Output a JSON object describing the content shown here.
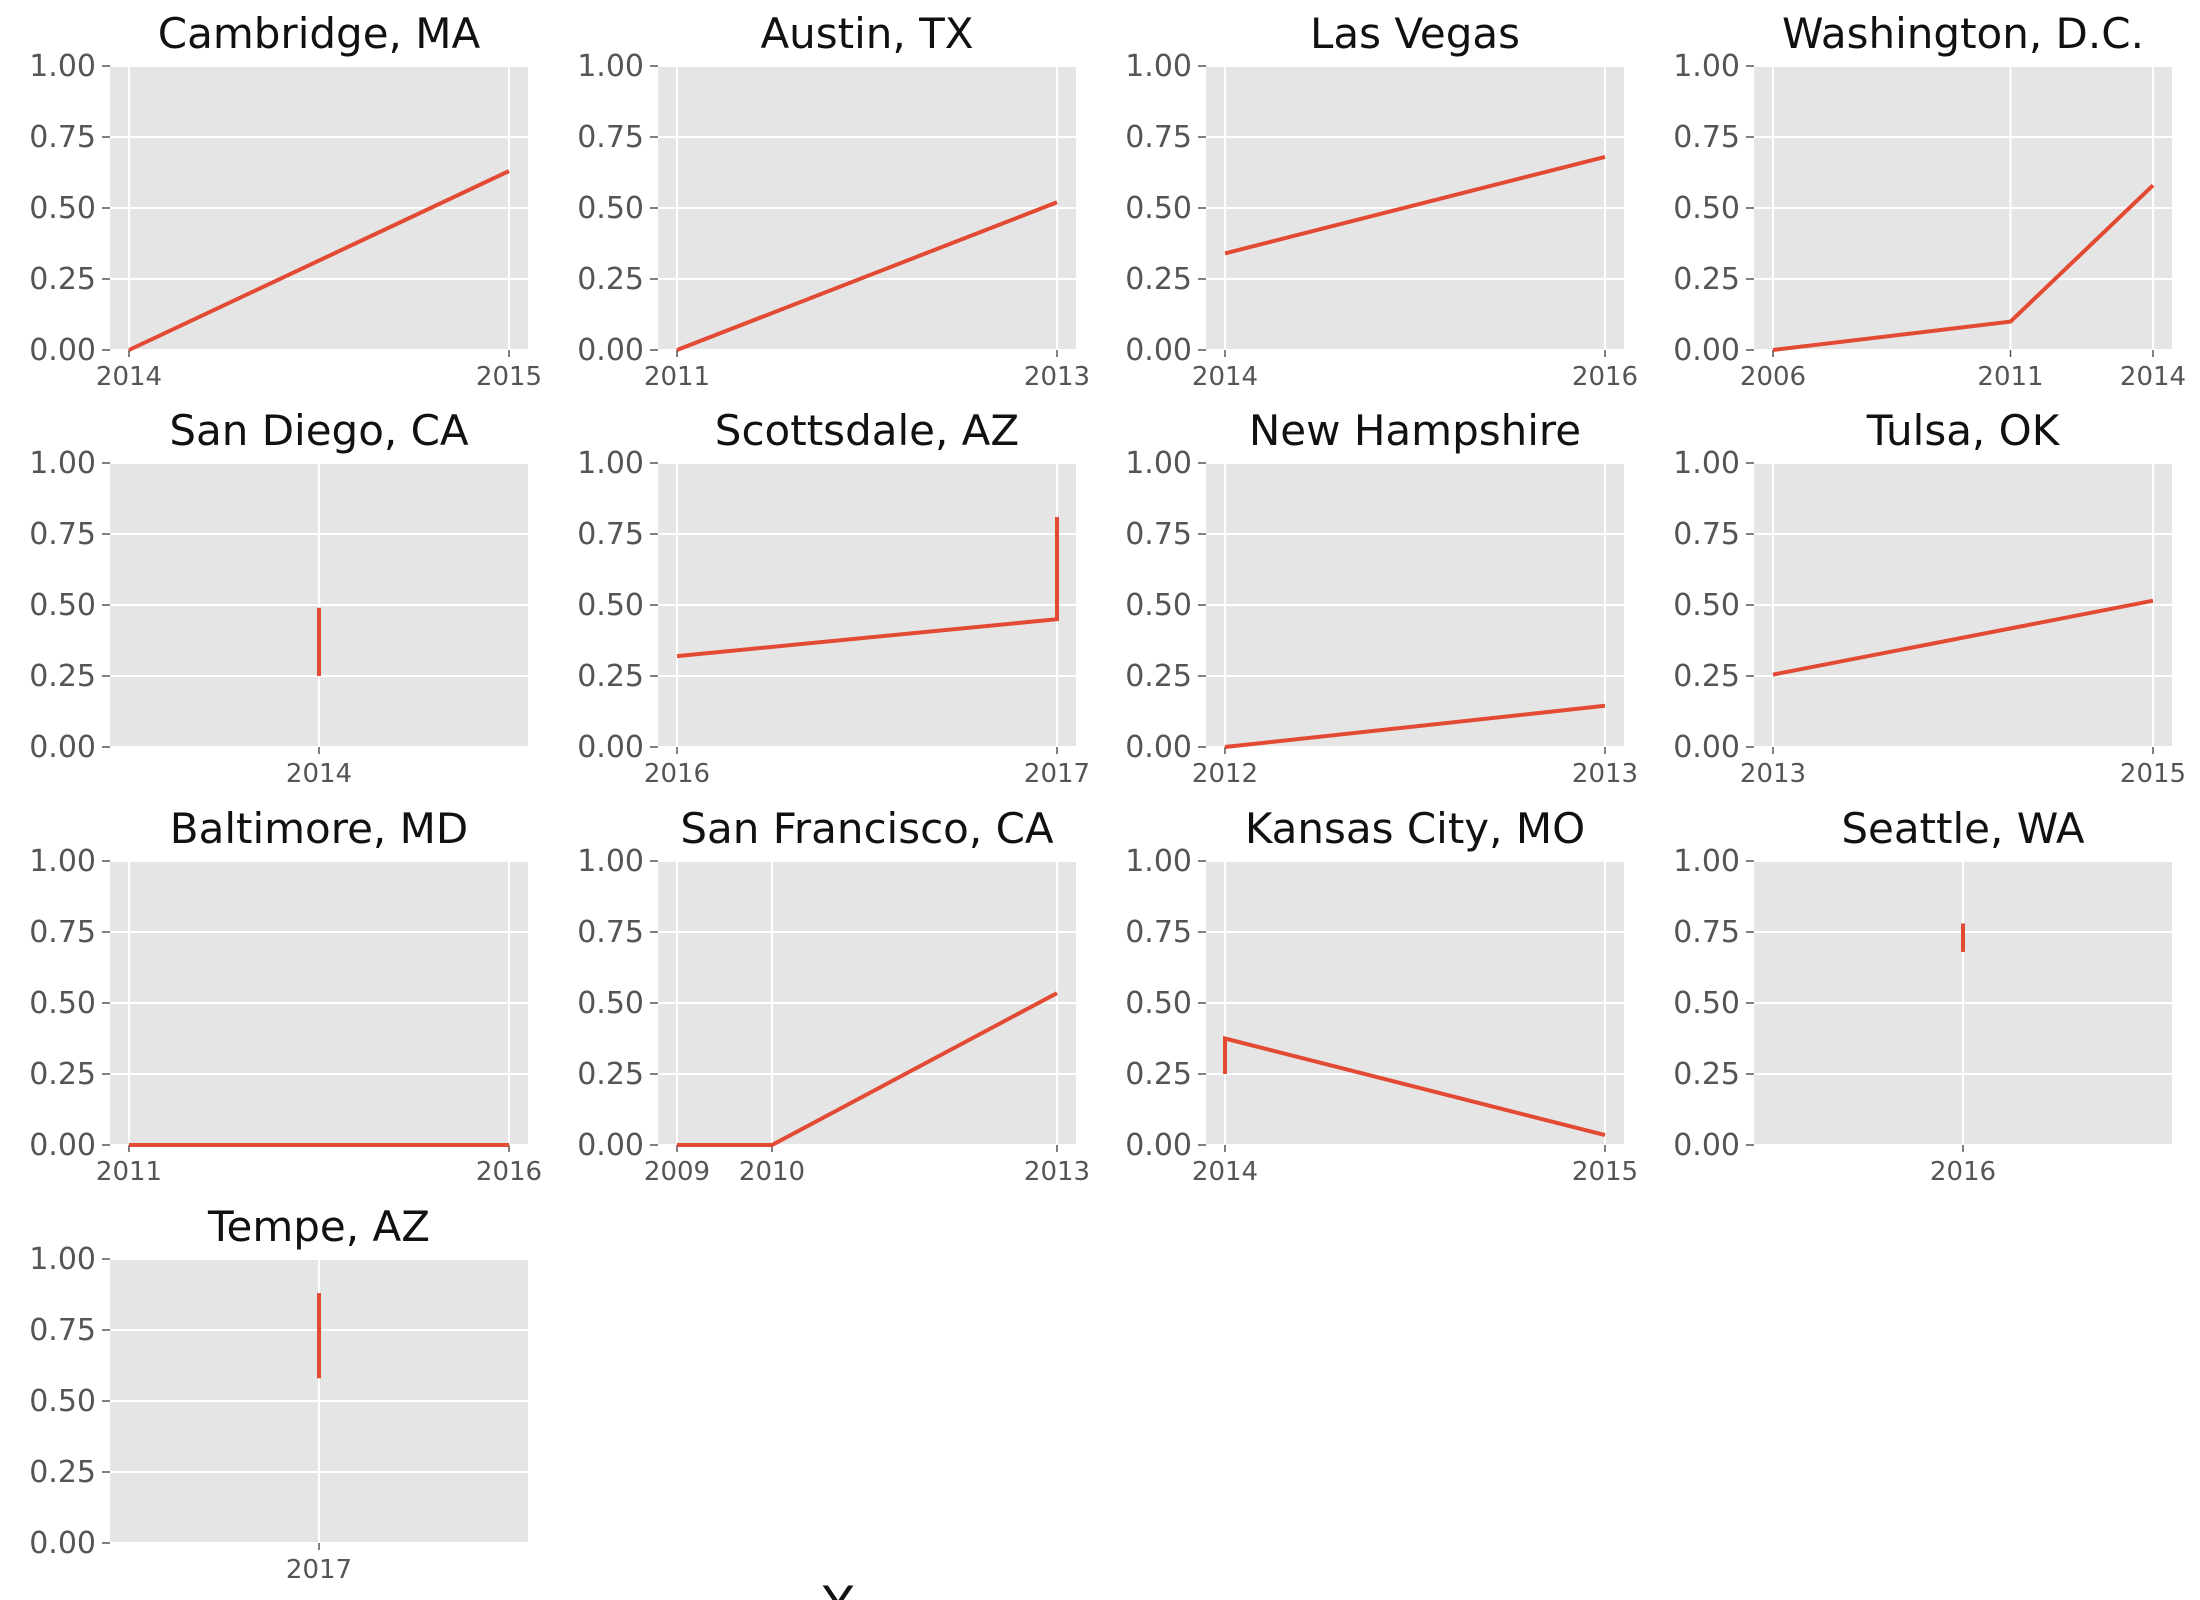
{
  "style": {
    "panel_background": "#e5e5e5",
    "grid_color": "#ffffff",
    "line_color": "#e24a33",
    "tick_label_color": "#555555",
    "title_color": "#111111"
  },
  "figure": {
    "xlabel": "Y"
  },
  "chart_data": [
    {
      "type": "line",
      "title": "Cambridge, MA",
      "ylim": [
        0,
        1
      ],
      "grid": true,
      "yticks": [
        "0.00",
        "0.25",
        "0.50",
        "0.75",
        "1.00"
      ],
      "xlim": [
        2013.95,
        2015.05
      ],
      "xticks": [
        {
          "value": 2014,
          "label": "2014"
        },
        {
          "value": 2015,
          "label": "2015"
        }
      ],
      "x": [
        2014,
        2015
      ],
      "y": [
        0.0,
        0.63
      ]
    },
    {
      "type": "line",
      "title": "Austin, TX",
      "ylim": [
        0,
        1
      ],
      "grid": true,
      "yticks": [
        "0.00",
        "0.25",
        "0.50",
        "0.75",
        "1.00"
      ],
      "xlim": [
        2010.9,
        2013.1
      ],
      "xticks": [
        {
          "value": 2011,
          "label": "2011"
        },
        {
          "value": 2013,
          "label": "2013"
        }
      ],
      "x": [
        2011,
        2013
      ],
      "y": [
        0.0,
        0.52
      ]
    },
    {
      "type": "line",
      "title": "Las Vegas",
      "ylim": [
        0,
        1
      ],
      "grid": true,
      "yticks": [
        "0.00",
        "0.25",
        "0.50",
        "0.75",
        "1.00"
      ],
      "xlim": [
        2013.9,
        2016.1
      ],
      "xticks": [
        {
          "value": 2014,
          "label": "2014"
        },
        {
          "value": 2016,
          "label": "2016"
        }
      ],
      "x": [
        2014,
        2016
      ],
      "y": [
        0.34,
        0.68
      ]
    },
    {
      "type": "line",
      "title": "Washington, D.C.",
      "ylim": [
        0,
        1
      ],
      "grid": true,
      "yticks": [
        "0.00",
        "0.25",
        "0.50",
        "0.75",
        "1.00"
      ],
      "xlim": [
        2005.6,
        2014.4
      ],
      "xticks": [
        {
          "value": 2006,
          "label": "2006"
        },
        {
          "value": 2011,
          "label": "2011"
        },
        {
          "value": 2014,
          "label": "2014"
        }
      ],
      "x": [
        2006,
        2011,
        2014
      ],
      "y": [
        0.0,
        0.1,
        0.58
      ]
    },
    {
      "type": "line",
      "title": "San Diego, CA",
      "ylim": [
        0,
        1
      ],
      "grid": true,
      "yticks": [
        "0.00",
        "0.25",
        "0.50",
        "0.75",
        "1.00"
      ],
      "xlim": [
        2013.945,
        2014.055
      ],
      "xticks": [
        {
          "value": 2014,
          "label": "2014"
        }
      ],
      "x": [
        2014,
        2014
      ],
      "y": [
        0.25,
        0.49
      ]
    },
    {
      "type": "line",
      "title": "Scottsdale, AZ",
      "ylim": [
        0,
        1
      ],
      "grid": true,
      "yticks": [
        "0.00",
        "0.25",
        "0.50",
        "0.75",
        "1.00"
      ],
      "xlim": [
        2015.95,
        2017.05
      ],
      "xticks": [
        {
          "value": 2016,
          "label": "2016"
        },
        {
          "value": 2017,
          "label": "2017"
        }
      ],
      "x": [
        2016,
        2017,
        2017
      ],
      "y": [
        0.32,
        0.45,
        0.81
      ]
    },
    {
      "type": "line",
      "title": "New Hampshire",
      "ylim": [
        0,
        1
      ],
      "grid": true,
      "yticks": [
        "0.00",
        "0.25",
        "0.50",
        "0.75",
        "1.00"
      ],
      "xlim": [
        2011.95,
        2013.05
      ],
      "xticks": [
        {
          "value": 2012,
          "label": "2012"
        },
        {
          "value": 2013,
          "label": "2013"
        }
      ],
      "x": [
        2012,
        2013
      ],
      "y": [
        0.0,
        0.145
      ]
    },
    {
      "type": "line",
      "title": "Tulsa, OK",
      "ylim": [
        0,
        1
      ],
      "grid": true,
      "yticks": [
        "0.00",
        "0.25",
        "0.50",
        "0.75",
        "1.00"
      ],
      "xlim": [
        2012.9,
        2015.1
      ],
      "xticks": [
        {
          "value": 2013,
          "label": "2013"
        },
        {
          "value": 2015,
          "label": "2015"
        }
      ],
      "x": [
        2013,
        2015
      ],
      "y": [
        0.255,
        0.515
      ]
    },
    {
      "type": "line",
      "title": "Baltimore, MD",
      "ylim": [
        0,
        1
      ],
      "grid": true,
      "yticks": [
        "0.00",
        "0.25",
        "0.50",
        "0.75",
        "1.00"
      ],
      "xlim": [
        2010.75,
        2016.25
      ],
      "xticks": [
        {
          "value": 2011,
          "label": "2011"
        },
        {
          "value": 2016,
          "label": "2016"
        }
      ],
      "x": [
        2011,
        2016
      ],
      "y": [
        0.0,
        0.0
      ]
    },
    {
      "type": "line",
      "title": "San Francisco, CA",
      "ylim": [
        0,
        1
      ],
      "grid": true,
      "yticks": [
        "0.00",
        "0.25",
        "0.50",
        "0.75",
        "1.00"
      ],
      "xlim": [
        2008.8,
        2013.2
      ],
      "xticks": [
        {
          "value": 2009,
          "label": "2009"
        },
        {
          "value": 2010,
          "label": "2010"
        },
        {
          "value": 2013,
          "label": "2013"
        }
      ],
      "x": [
        2009,
        2010,
        2013
      ],
      "y": [
        0.0,
        0.0,
        0.535
      ]
    },
    {
      "type": "line",
      "title": "Kansas City, MO",
      "ylim": [
        0,
        1
      ],
      "grid": true,
      "yticks": [
        "0.00",
        "0.25",
        "0.50",
        "0.75",
        "1.00"
      ],
      "xlim": [
        2013.95,
        2015.05
      ],
      "xticks": [
        {
          "value": 2014,
          "label": "2014"
        },
        {
          "value": 2015,
          "label": "2015"
        }
      ],
      "x": [
        2014,
        2014,
        2015
      ],
      "y": [
        0.25,
        0.375,
        0.035
      ]
    },
    {
      "type": "line",
      "title": "Seattle, WA",
      "ylim": [
        0,
        1
      ],
      "grid": true,
      "yticks": [
        "0.00",
        "0.25",
        "0.50",
        "0.75",
        "1.00"
      ],
      "xlim": [
        2015.945,
        2016.055
      ],
      "xticks": [
        {
          "value": 2016,
          "label": "2016"
        }
      ],
      "x": [
        2016,
        2016
      ],
      "y": [
        0.68,
        0.78
      ]
    },
    {
      "type": "line",
      "title": "Tempe, AZ",
      "ylim": [
        0,
        1
      ],
      "grid": true,
      "yticks": [
        "0.00",
        "0.25",
        "0.50",
        "0.75",
        "1.00"
      ],
      "xlim": [
        2016.945,
        2017.055
      ],
      "xticks": [
        {
          "value": 2017,
          "label": "2017"
        }
      ],
      "x": [
        2017,
        2017
      ],
      "y": [
        0.58,
        0.88
      ]
    }
  ]
}
